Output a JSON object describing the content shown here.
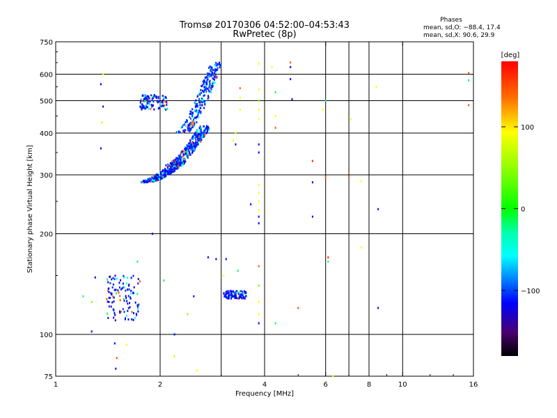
{
  "chart_data": {
    "type": "scatter",
    "title": "Tromsø 20170306 04:52:00–04:53:43",
    "subtitle": "RwPretec (8p)",
    "xlabel": "Frequency [MHz]",
    "ylabel": "Stationary phase Virtual Height [km]",
    "xscale": "log",
    "yscale": "log",
    "xlim": [
      1,
      16
    ],
    "ylim": [
      75,
      750
    ],
    "x_ticks": [
      1,
      2,
      4,
      6,
      8,
      10,
      16
    ],
    "x_tick_labels": [
      "1",
      "2",
      "4",
      "6",
      "8",
      "10",
      "16"
    ],
    "x_grid": [
      2,
      3,
      4,
      6,
      7,
      8,
      10
    ],
    "y_ticks": [
      75,
      100,
      200,
      300,
      400,
      500,
      600,
      750
    ],
    "y_tick_labels": [
      "75",
      "100",
      "200",
      "300",
      "400",
      "500",
      "600",
      "750"
    ],
    "y_grid": [
      100,
      200,
      300,
      400,
      500,
      600
    ],
    "grid": true,
    "stats": {
      "heading": "Phases",
      "line_o": "mean, sd,O: −88.4, 17.4",
      "line_x": "mean, sd,X:  90.6, 29.9"
    },
    "colorbar": {
      "label": "[deg]",
      "range": [
        -180,
        180
      ],
      "ticks": [
        100,
        0,
        -100
      ],
      "tick_labels": [
        "100",
        "0",
        "−100"
      ],
      "position": "right"
    },
    "clusters": [
      {
        "region": "F-trace upper",
        "x_range": [
          2.3,
          2.9
        ],
        "y_range": [
          400,
          650
        ],
        "phase_deg": -100
      },
      {
        "region": "F-trace middle",
        "x_range": [
          2.15,
          2.7
        ],
        "y_range": [
          320,
          420
        ],
        "phase_deg": -100
      },
      {
        "region": "F-trace lower",
        "x_range": [
          1.8,
          2.3
        ],
        "y_range": [
          285,
          330
        ],
        "phase_deg": -110
      },
      {
        "region": "patch near 1.9 MHz",
        "x_range": [
          1.75,
          2.1
        ],
        "y_range": [
          470,
          520
        ],
        "phase_deg": -110
      },
      {
        "region": "E/low cluster",
        "x_range": [
          1.4,
          1.75
        ],
        "y_range": [
          110,
          150
        ],
        "phase_deg": -110
      },
      {
        "region": "3.3 MHz cluster",
        "x_range": [
          3.05,
          3.55
        ],
        "y_range": [
          128,
          135
        ],
        "phase_deg": -110
      }
    ],
    "points": [
      {
        "x": 1.35,
        "y": 560,
        "phase": -110
      },
      {
        "x": 1.37,
        "y": 480,
        "phase": -110
      },
      {
        "x": 1.37,
        "y": 600,
        "phase": 100
      },
      {
        "x": 1.36,
        "y": 430,
        "phase": 80
      },
      {
        "x": 1.35,
        "y": 360,
        "phase": -110
      },
      {
        "x": 1.2,
        "y": 130,
        "phase": -20
      },
      {
        "x": 1.27,
        "y": 125,
        "phase": 60
      },
      {
        "x": 1.3,
        "y": 148,
        "phase": -110
      },
      {
        "x": 1.27,
        "y": 102,
        "phase": -110
      },
      {
        "x": 1.48,
        "y": 94,
        "phase": -110
      },
      {
        "x": 1.6,
        "y": 93,
        "phase": 100
      },
      {
        "x": 1.72,
        "y": 165,
        "phase": -20
      },
      {
        "x": 1.5,
        "y": 85,
        "phase": 150
      },
      {
        "x": 1.49,
        "y": 79,
        "phase": -110
      },
      {
        "x": 1.9,
        "y": 200,
        "phase": -110
      },
      {
        "x": 2.2,
        "y": 100,
        "phase": -110
      },
      {
        "x": 2.2,
        "y": 86,
        "phase": 80
      },
      {
        "x": 2.05,
        "y": 145,
        "phase": -10
      },
      {
        "x": 2.4,
        "y": 115,
        "phase": 60
      },
      {
        "x": 2.5,
        "y": 130,
        "phase": -110
      },
      {
        "x": 2.55,
        "y": 78,
        "phase": 100
      },
      {
        "x": 2.75,
        "y": 170,
        "phase": -110
      },
      {
        "x": 2.9,
        "y": 168,
        "phase": -110
      },
      {
        "x": 3.1,
        "y": 168,
        "phase": -110
      },
      {
        "x": 3.05,
        "y": 150,
        "phase": 100
      },
      {
        "x": 3.35,
        "y": 155,
        "phase": -20
      },
      {
        "x": 3.3,
        "y": 400,
        "phase": 100
      },
      {
        "x": 3.25,
        "y": 380,
        "phase": 100
      },
      {
        "x": 3.3,
        "y": 370,
        "phase": -110
      },
      {
        "x": 3.4,
        "y": 470,
        "phase": 100
      },
      {
        "x": 3.4,
        "y": 510,
        "phase": 100
      },
      {
        "x": 3.4,
        "y": 545,
        "phase": 140
      },
      {
        "x": 3.65,
        "y": 245,
        "phase": -110
      },
      {
        "x": 3.85,
        "y": 645,
        "phase": 100
      },
      {
        "x": 3.85,
        "y": 540,
        "phase": 100
      },
      {
        "x": 3.85,
        "y": 500,
        "phase": 60
      },
      {
        "x": 3.85,
        "y": 470,
        "phase": 100
      },
      {
        "x": 3.85,
        "y": 440,
        "phase": 100
      },
      {
        "x": 3.85,
        "y": 370,
        "phase": -110
      },
      {
        "x": 3.85,
        "y": 350,
        "phase": -110
      },
      {
        "x": 3.85,
        "y": 280,
        "phase": 100
      },
      {
        "x": 3.85,
        "y": 265,
        "phase": 100
      },
      {
        "x": 3.85,
        "y": 250,
        "phase": 100
      },
      {
        "x": 3.85,
        "y": 235,
        "phase": 100
      },
      {
        "x": 3.85,
        "y": 225,
        "phase": -110
      },
      {
        "x": 3.85,
        "y": 215,
        "phase": -110
      },
      {
        "x": 3.85,
        "y": 160,
        "phase": 140
      },
      {
        "x": 3.85,
        "y": 140,
        "phase": 40
      },
      {
        "x": 3.85,
        "y": 125,
        "phase": 100
      },
      {
        "x": 3.85,
        "y": 115,
        "phase": 100
      },
      {
        "x": 3.85,
        "y": 108,
        "phase": -110
      },
      {
        "x": 4.2,
        "y": 630,
        "phase": 100
      },
      {
        "x": 4.3,
        "y": 530,
        "phase": -20
      },
      {
        "x": 4.3,
        "y": 450,
        "phase": 100
      },
      {
        "x": 4.3,
        "y": 415,
        "phase": 140
      },
      {
        "x": 4.3,
        "y": 108,
        "phase": -20
      },
      {
        "x": 4.75,
        "y": 650,
        "phase": 140
      },
      {
        "x": 4.75,
        "y": 630,
        "phase": -110
      },
      {
        "x": 4.75,
        "y": 580,
        "phase": -110
      },
      {
        "x": 4.8,
        "y": 505,
        "phase": -110
      },
      {
        "x": 5.0,
        "y": 120,
        "phase": 140
      },
      {
        "x": 5.5,
        "y": 330,
        "phase": 160
      },
      {
        "x": 5.5,
        "y": 285,
        "phase": -110
      },
      {
        "x": 5.5,
        "y": 225,
        "phase": -110
      },
      {
        "x": 5.9,
        "y": 470,
        "phase": 100
      },
      {
        "x": 6.0,
        "y": 500,
        "phase": -30
      },
      {
        "x": 6.0,
        "y": 295,
        "phase": 140
      },
      {
        "x": 6.1,
        "y": 170,
        "phase": 160
      },
      {
        "x": 6.1,
        "y": 165,
        "phase": -20
      },
      {
        "x": 6.3,
        "y": 75,
        "phase": 100
      },
      {
        "x": 7.1,
        "y": 440,
        "phase": 100
      },
      {
        "x": 7.0,
        "y": 297,
        "phase": 140
      },
      {
        "x": 7.6,
        "y": 287,
        "phase": 100
      },
      {
        "x": 7.6,
        "y": 182,
        "phase": 100
      },
      {
        "x": 8.4,
        "y": 550,
        "phase": 100
      },
      {
        "x": 8.5,
        "y": 237,
        "phase": -110
      },
      {
        "x": 8.5,
        "y": 120,
        "phase": -110
      },
      {
        "x": 15.5,
        "y": 605,
        "phase": 140
      },
      {
        "x": 15.5,
        "y": 575,
        "phase": -20
      },
      {
        "x": 15.5,
        "y": 485,
        "phase": 140
      }
    ]
  }
}
